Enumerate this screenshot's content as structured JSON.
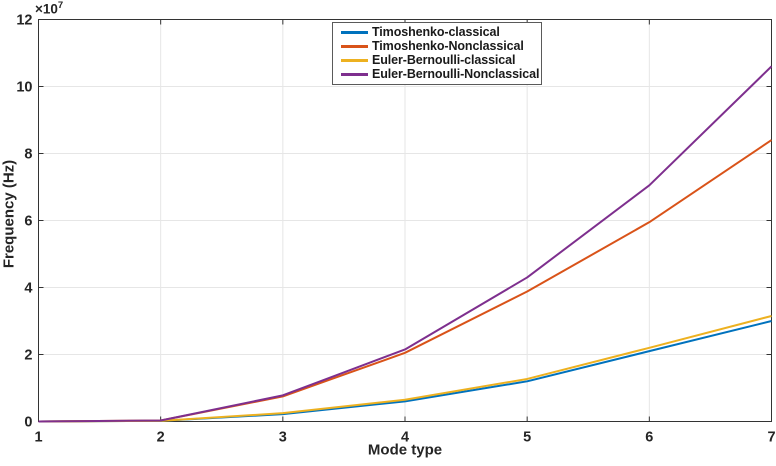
{
  "style": {
    "background": "#ffffff",
    "axes_color": "#333333",
    "text_color": "#252525",
    "grid_color": "#e6e6e6",
    "legend_border_color": "#5a5a5a",
    "line_width": 2
  },
  "chart_data": {
    "type": "line",
    "title": "",
    "xlabel": "Mode type",
    "ylabel": "Frequency (Hz)",
    "y_multiplier": {
      "base": "×10",
      "exponent": "7"
    },
    "y_values_unit": "×10^7 Hz",
    "x": [
      1,
      2,
      3,
      4,
      5,
      6,
      7
    ],
    "xlim": [
      1,
      7
    ],
    "ylim": [
      0,
      12
    ],
    "x_ticks": [
      "1",
      "2",
      "3",
      "4",
      "5",
      "6",
      "7"
    ],
    "y_ticks": [
      "0",
      "2",
      "4",
      "6",
      "8",
      "10",
      "12"
    ],
    "grid": true,
    "legend_position": "inside-top",
    "series": [
      {
        "name": "Timoshenko-classical",
        "color": "#0072BD",
        "values": [
          0,
          0.02,
          0.22,
          0.6,
          1.2,
          2.1,
          3.0
        ]
      },
      {
        "name": "Timoshenko-Nonclassical",
        "color": "#D95319",
        "values": [
          0,
          0.03,
          0.75,
          2.05,
          3.88,
          5.95,
          8.4
        ]
      },
      {
        "name": "Euler-Bernoulli-classical",
        "color": "#EDB120",
        "values": [
          0,
          0.02,
          0.25,
          0.65,
          1.27,
          2.2,
          3.15
        ]
      },
      {
        "name": "Euler-Bernoulli-Nonclassical",
        "color": "#7E2F8E",
        "values": [
          0,
          0.03,
          0.78,
          2.15,
          4.3,
          7.05,
          10.6
        ]
      }
    ]
  }
}
